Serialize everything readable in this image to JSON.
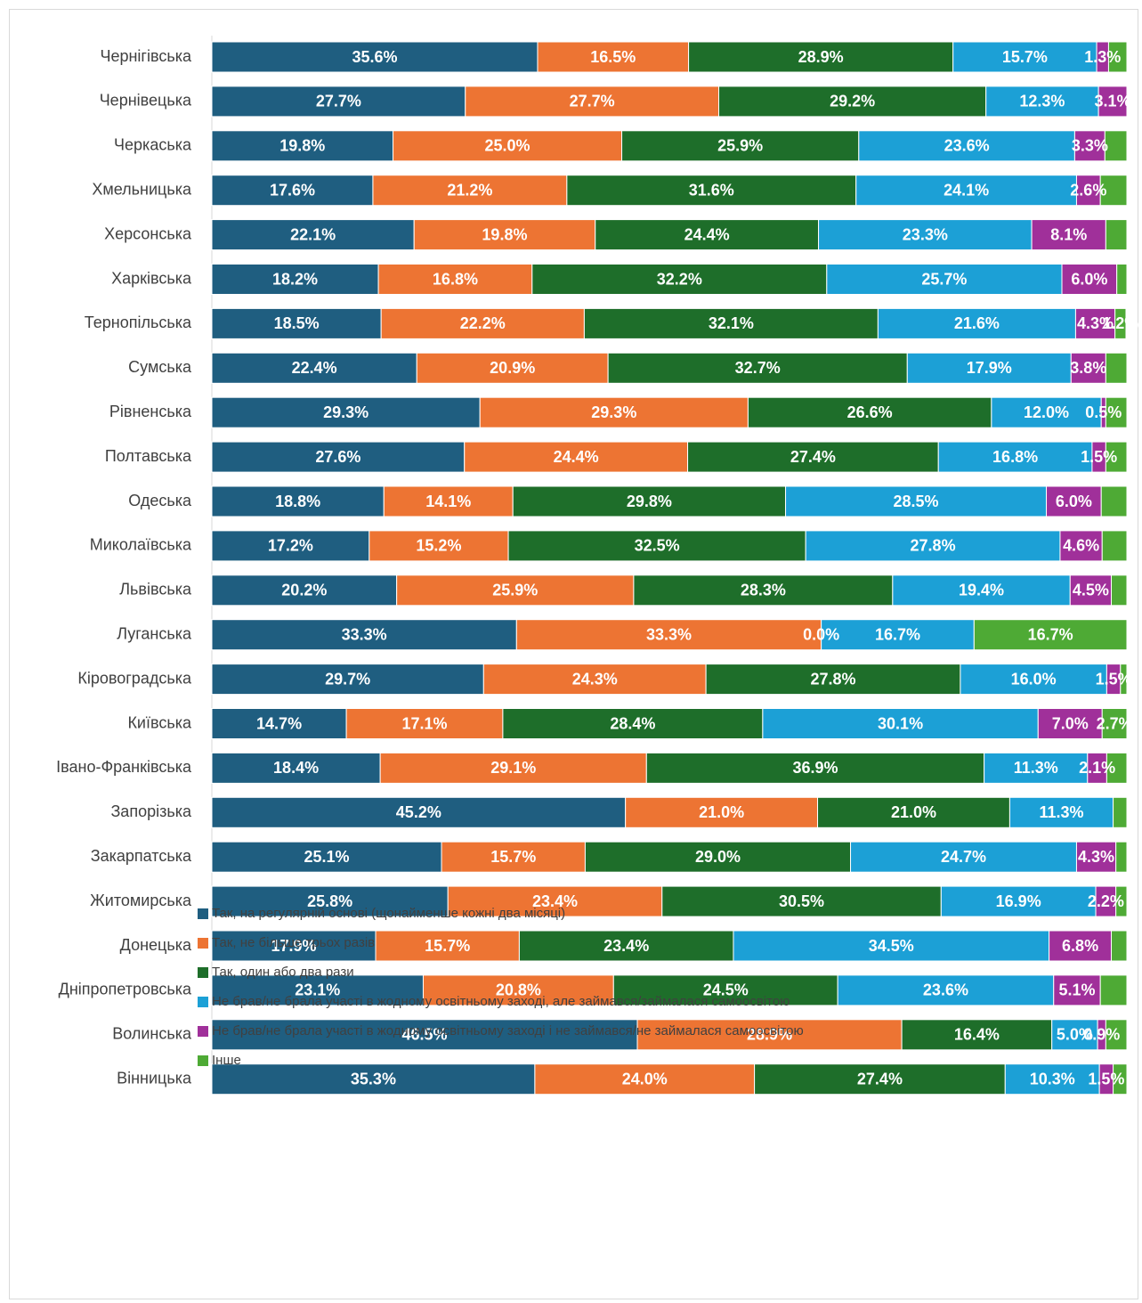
{
  "chart_data": {
    "type": "stacked-bar-horizontal",
    "categories": [
      "Чернігівська",
      "Чернівецька",
      "Черкаська",
      "Хмельницька",
      "Херсонська",
      "Харківська",
      "Тернопільська",
      "Сумська",
      "Рівненська",
      "Полтавська",
      "Одеська",
      "Миколаївська",
      "Львівська",
      "Луганська",
      "Кіровоградська",
      "Київська",
      "Івано-Франківська",
      "Запорізька",
      "Закарпатська",
      "Житомирська",
      "Донецька",
      "Дніпропетровська",
      "Волинська",
      "Вінницька"
    ],
    "xlim": [
      0,
      100
    ],
    "series": [
      {
        "name": "Так, на регулярній основі (щонайменше кожні два місяці)",
        "color": "#1f5e80",
        "values": [
          35.6,
          27.7,
          19.8,
          17.6,
          22.1,
          18.2,
          18.5,
          22.4,
          29.3,
          27.6,
          18.8,
          17.2,
          20.2,
          33.3,
          29.7,
          14.7,
          18.4,
          45.2,
          25.1,
          25.8,
          17.9,
          23.1,
          46.5,
          35.3
        ],
        "value_labels": [
          "35.6%",
          "27.7%",
          "19.8%",
          "17.6%",
          "22.1%",
          "18.2%",
          "18.5%",
          "22.4%",
          "29.3%",
          "27.6%",
          "18.8%",
          "17.2%",
          "20.2%",
          "33.3%",
          "29.7%",
          "14.7%",
          "18.4%",
          "45.2%",
          "25.1%",
          "25.8%",
          "17.9%",
          "23.1%",
          "46.5%",
          "35.3%"
        ]
      },
      {
        "name": "Так, не більше трьох разів",
        "color": "#ed7433",
        "values": [
          16.5,
          27.7,
          25.0,
          21.2,
          19.8,
          16.8,
          22.2,
          20.9,
          29.3,
          24.4,
          14.1,
          15.2,
          25.9,
          33.3,
          24.3,
          17.1,
          29.1,
          21.0,
          15.7,
          23.4,
          15.7,
          20.8,
          28.9,
          24.0
        ],
        "value_labels": [
          "16.5%",
          "27.7%",
          "25.0%",
          "21.2%",
          "19.8%",
          "16.8%",
          "22.2%",
          "20.9%",
          "29.3%",
          "24.4%",
          "14.1%",
          "15.2%",
          "25.9%",
          "33.3%",
          "24.3%",
          "17.1%",
          "29.1%",
          "21.0%",
          "15.7%",
          "23.4%",
          "15.7%",
          "20.8%",
          "28.9%",
          "24.0%"
        ]
      },
      {
        "name": "Так, один або два рази",
        "color": "#1e6e2a",
        "values": [
          28.9,
          29.2,
          25.9,
          31.6,
          24.4,
          32.2,
          32.1,
          32.7,
          26.6,
          27.4,
          29.8,
          32.5,
          28.3,
          0.0,
          27.8,
          28.4,
          36.9,
          21.0,
          29.0,
          30.5,
          23.4,
          24.5,
          16.4,
          27.4
        ],
        "value_labels": [
          "28.9%",
          "29.2%",
          "25.9%",
          "31.6%",
          "24.4%",
          "32.2%",
          "32.1%",
          "32.7%",
          "26.6%",
          "27.4%",
          "29.8%",
          "32.5%",
          "28.3%",
          "0.0%",
          "27.8%",
          "28.4%",
          "36.9%",
          "21.0%",
          "29.0%",
          "30.5%",
          "23.4%",
          "24.5%",
          "16.4%",
          "27.4%"
        ]
      },
      {
        "name": "Не брав/не брала участі в жодному освітньому заході, але займався/займалася самоосвітою",
        "color": "#1ca0d6",
        "values": [
          15.7,
          12.3,
          23.6,
          24.1,
          23.3,
          25.7,
          21.6,
          17.9,
          12.0,
          16.8,
          28.5,
          27.8,
          19.4,
          16.7,
          16.0,
          30.1,
          11.3,
          11.3,
          24.7,
          16.9,
          34.5,
          23.6,
          5.0,
          10.3
        ],
        "value_labels": [
          "15.7%",
          "12.3%",
          "23.6%",
          "24.1%",
          "23.3%",
          "25.7%",
          "21.6%",
          "17.9%",
          "12.0%",
          "16.8%",
          "28.5%",
          "27.8%",
          "19.4%",
          "16.7%",
          "16.0%",
          "30.1%",
          "11.3%",
          "11.3%",
          "24.7%",
          "16.9%",
          "34.5%",
          "23.6%",
          "5.0%",
          "10.3%"
        ]
      },
      {
        "name": "Не брав/не брала участі в жодному освітньому заході і не займався/не займалася самоосвітою",
        "color": "#a0309a",
        "values": [
          1.3,
          3.1,
          3.3,
          2.6,
          8.1,
          6.0,
          4.3,
          3.8,
          0.5,
          1.5,
          6.0,
          4.6,
          4.5,
          0,
          1.5,
          7.0,
          2.1,
          0,
          4.3,
          2.2,
          6.8,
          5.1,
          0.9,
          1.5
        ],
        "value_labels": [
          "1.3%",
          "3.1%",
          "3.3%",
          "2.6%",
          "8.1%",
          "6.0%",
          "4.3%",
          "3.8%",
          "0.5%",
          "1.5%",
          "6.0%",
          "4.6%",
          "4.5%",
          null,
          "1.5%",
          "7.0%",
          "2.1%",
          null,
          "4.3%",
          "2.2%",
          "6.8%",
          "5.1%",
          "0.9%",
          "1.5%"
        ]
      },
      {
        "name": "Інше",
        "color": "#4eaa35",
        "values": [
          2.0,
          0,
          2.4,
          2.9,
          2.3,
          1.1,
          1.2,
          2.3,
          2.3,
          2.3,
          2.8,
          2.7,
          1.7,
          16.7,
          0.7,
          2.7,
          2.2,
          1.5,
          1.2,
          1.2,
          1.7,
          2.9,
          2.3,
          1.5
        ],
        "value_labels": [
          null,
          null,
          null,
          null,
          null,
          null,
          "1.2%",
          null,
          null,
          null,
          null,
          null,
          null,
          "16.7%",
          null,
          "2.7%",
          null,
          null,
          null,
          null,
          null,
          null,
          null,
          null
        ]
      }
    ]
  }
}
